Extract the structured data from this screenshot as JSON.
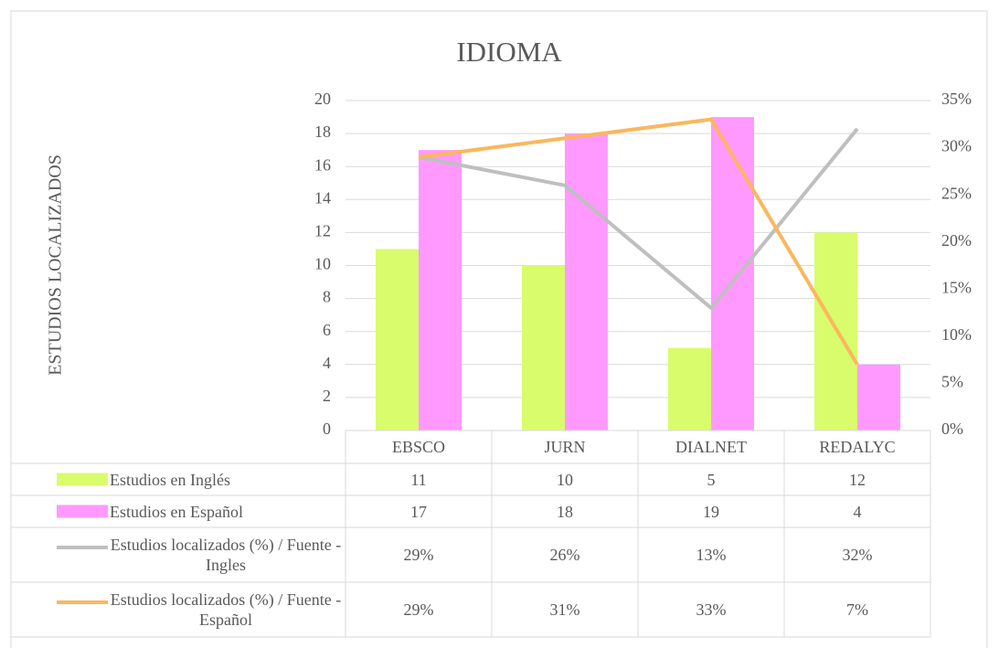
{
  "chart_data": {
    "type": "bar",
    "title": "IDIOMA",
    "y_label": "ESTUDIOS LOCALIZADOS",
    "categories": [
      "EBSCO",
      "JURN",
      "DIALNET",
      "REDALYC"
    ],
    "series": [
      {
        "name": "Estudios en Inglés",
        "type": "bar",
        "color": "#d9fc6c",
        "values": [
          11,
          10,
          5,
          12
        ]
      },
      {
        "name": "Estudios en Español",
        "type": "bar",
        "color": "#ff99ff",
        "values": [
          17,
          18,
          19,
          4
        ]
      },
      {
        "name": "Estudios localizados (%) / Fuente - Ingles",
        "type": "line",
        "axis": "y2",
        "color": "#bfbfbf",
        "values": [
          29,
          26,
          13,
          32
        ],
        "value_labels": [
          "29%",
          "26%",
          "13%",
          "32%"
        ]
      },
      {
        "name": "Estudios localizados (%) / Fuente - Español",
        "type": "line",
        "axis": "y2",
        "color": "#fbb75e",
        "values": [
          29,
          31,
          33,
          7
        ],
        "value_labels": [
          "29%",
          "31%",
          "33%",
          "7%"
        ]
      }
    ],
    "ylim": [
      0,
      20
    ],
    "yticks": [
      0,
      2,
      4,
      6,
      8,
      10,
      12,
      14,
      16,
      18,
      20
    ],
    "y2lim": [
      0,
      35
    ],
    "y2ticks": [
      {
        "value": 0,
        "label": "0%"
      },
      {
        "value": 5,
        "label": "5%"
      },
      {
        "value": 10,
        "label": "10%"
      },
      {
        "value": 15,
        "label": "15%"
      },
      {
        "value": 20,
        "label": "20%"
      },
      {
        "value": 25,
        "label": "25%"
      },
      {
        "value": 30,
        "label": "30%"
      },
      {
        "value": 35,
        "label": "35%"
      }
    ],
    "grid": true,
    "data_table": true
  }
}
